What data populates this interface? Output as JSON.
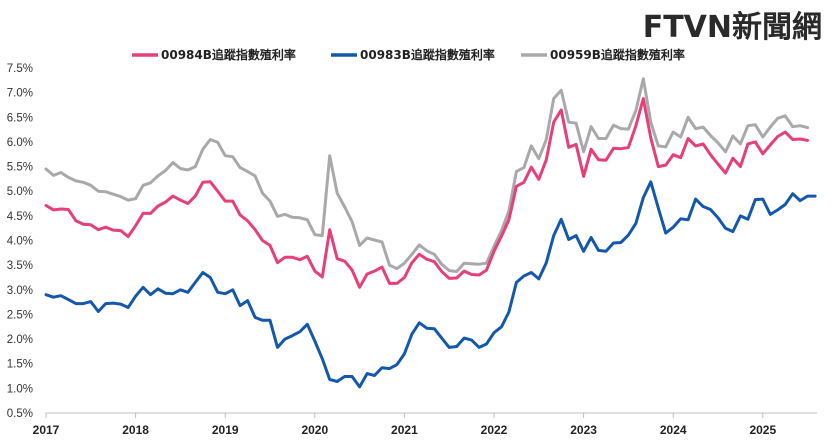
{
  "watermark": {
    "text": "FTVN新聞網",
    "color": "#2a2a2a"
  },
  "chart_data": {
    "type": "line",
    "title": "",
    "xlabel": "",
    "ylabel": "",
    "ylim": [
      0.5,
      7.5
    ],
    "yticks": [
      "0.5%",
      "1.0%",
      "1.5%",
      "2.0%",
      "2.5%",
      "3.0%",
      "3.5%",
      "4.0%",
      "4.5%",
      "5.0%",
      "5.5%",
      "6.0%",
      "6.5%",
      "7.0%",
      "7.5%"
    ],
    "xticks": [
      "2017",
      "2018",
      "2019",
      "2020",
      "2021",
      "2022",
      "2023",
      "2024",
      "2025"
    ],
    "x_start_year": 2017,
    "points_per_year": 12,
    "legend_position": "top",
    "grid": false,
    "series": [
      {
        "name": "00984B追蹤指數殖利率",
        "color": "#e63f7a",
        "values": [
          4.71,
          4.62,
          4.64,
          4.63,
          4.4,
          4.33,
          4.32,
          4.22,
          4.27,
          4.21,
          4.2,
          4.08,
          4.3,
          4.55,
          4.55,
          4.7,
          4.78,
          4.9,
          4.82,
          4.75,
          4.9,
          5.18,
          5.19,
          5.0,
          4.8,
          4.8,
          4.52,
          4.4,
          4.22,
          4.0,
          3.9,
          3.55,
          3.66,
          3.66,
          3.61,
          3.68,
          3.38,
          3.26,
          4.22,
          3.63,
          3.58,
          3.4,
          3.05,
          3.32,
          3.38,
          3.46,
          3.13,
          3.13,
          3.25,
          3.55,
          3.72,
          3.62,
          3.57,
          3.37,
          3.23,
          3.24,
          3.38,
          3.31,
          3.3,
          3.4,
          3.78,
          4.09,
          4.42,
          5.1,
          5.18,
          5.49,
          5.24,
          5.64,
          6.4,
          6.65,
          5.89,
          5.95,
          5.3,
          5.85,
          5.64,
          5.63,
          5.87,
          5.86,
          5.89,
          6.33,
          6.88,
          6.08,
          5.5,
          5.53,
          5.74,
          5.68,
          6.07,
          5.92,
          5.96,
          5.74,
          5.55,
          5.37,
          5.67,
          5.5,
          5.96,
          6.0,
          5.76,
          5.94,
          6.11,
          6.2,
          6.05,
          6.06,
          6.03
        ]
      },
      {
        "name": "00983B追蹤指數殖利率",
        "color": "#1458ad",
        "values": [
          2.9,
          2.85,
          2.88,
          2.8,
          2.72,
          2.72,
          2.76,
          2.56,
          2.72,
          2.73,
          2.71,
          2.64,
          2.87,
          3.05,
          2.9,
          3.02,
          2.93,
          2.92,
          3.0,
          2.95,
          3.15,
          3.35,
          3.25,
          2.95,
          2.92,
          3.0,
          2.68,
          2.78,
          2.44,
          2.38,
          2.38,
          1.83,
          2.0,
          2.07,
          2.15,
          2.3,
          1.96,
          1.6,
          1.18,
          1.14,
          1.24,
          1.24,
          1.03,
          1.3,
          1.26,
          1.42,
          1.4,
          1.48,
          1.7,
          2.1,
          2.33,
          2.22,
          2.21,
          2.02,
          1.83,
          1.85,
          2.02,
          1.98,
          1.83,
          1.9,
          2.13,
          2.25,
          2.55,
          3.15,
          3.28,
          3.35,
          3.22,
          3.55,
          4.1,
          4.43,
          4.02,
          4.1,
          3.78,
          4.06,
          3.8,
          3.78,
          3.95,
          3.96,
          4.11,
          4.35,
          4.87,
          5.19,
          4.66,
          4.15,
          4.27,
          4.44,
          4.42,
          4.84,
          4.69,
          4.63,
          4.46,
          4.25,
          4.18,
          4.5,
          4.43,
          4.83,
          4.84,
          4.53,
          4.62,
          4.73,
          4.95,
          4.81,
          4.9,
          4.9
        ]
      },
      {
        "name": "00959B追蹤指數殖利率",
        "color": "#a9a9a9",
        "values": [
          5.45,
          5.32,
          5.38,
          5.28,
          5.21,
          5.18,
          5.12,
          5.0,
          4.99,
          4.94,
          4.89,
          4.82,
          4.85,
          5.12,
          5.17,
          5.31,
          5.42,
          5.58,
          5.46,
          5.43,
          5.5,
          5.85,
          6.05,
          5.99,
          5.72,
          5.7,
          5.48,
          5.4,
          5.31,
          4.96,
          4.8,
          4.49,
          4.53,
          4.47,
          4.46,
          4.42,
          4.12,
          4.1,
          5.72,
          4.96,
          4.68,
          4.38,
          3.9,
          4.05,
          4.01,
          3.97,
          3.5,
          3.43,
          3.54,
          3.72,
          3.91,
          3.79,
          3.72,
          3.52,
          3.39,
          3.37,
          3.54,
          3.53,
          3.52,
          3.54,
          3.88,
          4.2,
          4.6,
          5.4,
          5.48,
          5.92,
          5.66,
          6.05,
          6.88,
          7.05,
          6.4,
          6.38,
          5.8,
          6.31,
          6.07,
          6.07,
          6.34,
          6.27,
          6.26,
          6.64,
          7.28,
          6.4,
          5.92,
          5.9,
          6.2,
          6.1,
          6.5,
          6.27,
          6.3,
          6.13,
          5.98,
          5.8,
          6.12,
          5.96,
          6.33,
          6.35,
          6.1,
          6.3,
          6.48,
          6.53,
          6.31,
          6.33,
          6.29
        ]
      }
    ]
  }
}
